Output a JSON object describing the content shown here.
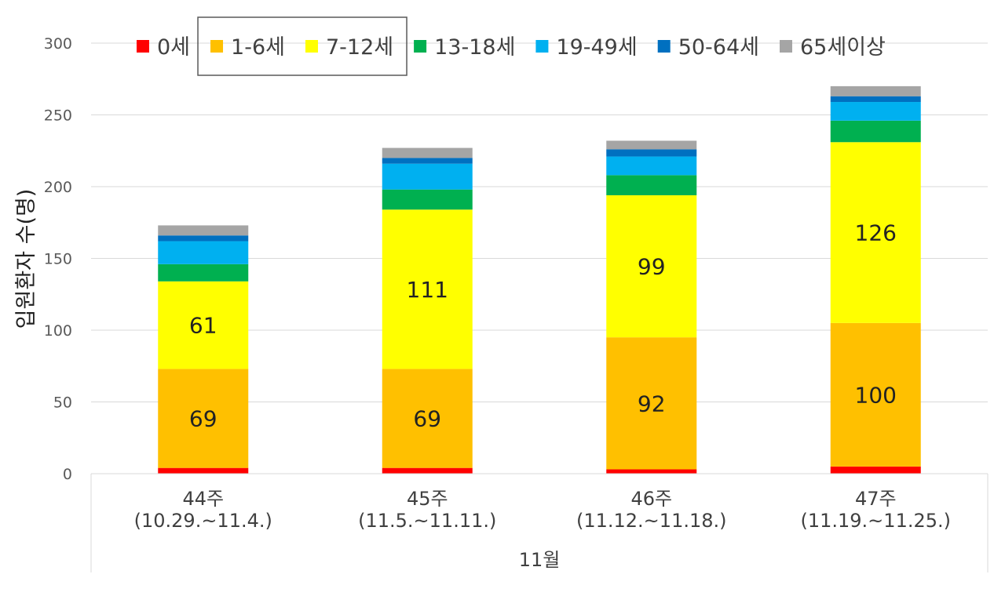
{
  "chart_data": {
    "type": "bar",
    "stacked": true,
    "ylabel": "입원환자 수(명)",
    "ylim": [
      0,
      300
    ],
    "yticks": [
      0,
      50,
      100,
      150,
      200,
      250,
      300
    ],
    "grid": true,
    "legend_position": "top",
    "categories": [
      {
        "week": "44주",
        "range": "(10.29.~11.4.)"
      },
      {
        "week": "45주",
        "range": "(11.5.~11.11.)"
      },
      {
        "week": "46주",
        "range": "(11.12.~11.18.)"
      },
      {
        "week": "47주",
        "range": "(11.19.~11.25.)"
      }
    ],
    "group_label": "11월",
    "series": [
      {
        "name": "0세",
        "color": "#ff0000",
        "values": [
          4,
          4,
          3,
          5
        ]
      },
      {
        "name": "1-6세",
        "color": "#ffc000",
        "values": [
          69,
          69,
          92,
          100
        ],
        "labeled": true
      },
      {
        "name": "7-12세",
        "color": "#ffff00",
        "values": [
          61,
          111,
          99,
          126
        ],
        "labeled": true
      },
      {
        "name": "13-18세",
        "color": "#00b050",
        "values": [
          12,
          14,
          14,
          15
        ]
      },
      {
        "name": "19-49세",
        "color": "#00b0f0",
        "values": [
          16,
          18,
          13,
          13
        ]
      },
      {
        "name": "50-64세",
        "color": "#0070c0",
        "values": [
          4,
          4,
          5,
          4
        ]
      },
      {
        "name": "65세이상",
        "color": "#a5a5a5",
        "values": [
          7,
          7,
          6,
          7
        ]
      }
    ],
    "highlighted_legend_entry": "1-6세"
  }
}
